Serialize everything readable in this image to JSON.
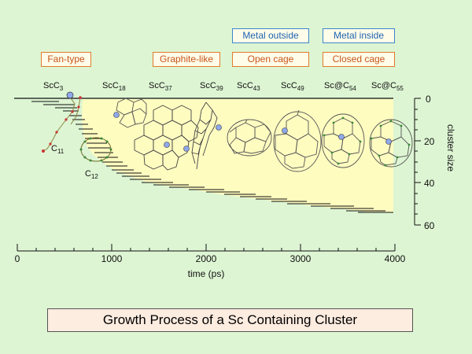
{
  "tags": {
    "fan_type": "Fan-type",
    "graphite_like": "Graphite-like",
    "open_cage": "Open cage",
    "closed_cage": "Closed cage",
    "metal_outside": "Metal outside",
    "metal_inside": "Metal inside"
  },
  "molecules": [
    {
      "prefix": "ScC",
      "sub": "3"
    },
    {
      "prefix": "ScC",
      "sub": "18"
    },
    {
      "prefix": "ScC",
      "sub": "37"
    },
    {
      "prefix": "ScC",
      "sub": "39"
    },
    {
      "prefix": "ScC",
      "sub": "43"
    },
    {
      "prefix": "ScC",
      "sub": "49"
    },
    {
      "prefix": "Sc@C",
      "sub": "54"
    },
    {
      "prefix": "Sc@C",
      "sub": "55"
    }
  ],
  "side_labels": {
    "c11": {
      "prefix": "C",
      "sub": "11"
    },
    "c12": {
      "prefix": "C",
      "sub": "12"
    }
  },
  "axes": {
    "x_label": "time (ps)",
    "x_ticks": [
      "0",
      "1000",
      "2000",
      "3000",
      "4000"
    ],
    "y_label": "cluster size",
    "y_ticks": [
      "0",
      "20",
      "40",
      "60"
    ]
  },
  "footer_title": "Growth Process of a Sc Containing Cluster",
  "colors": {
    "background": "#ddf5d3",
    "area_fill": "#fffcc0",
    "tag_orange": "#e07b2a",
    "tag_blue": "#3d86cc",
    "sc_atom": "#8fa8ea"
  }
}
